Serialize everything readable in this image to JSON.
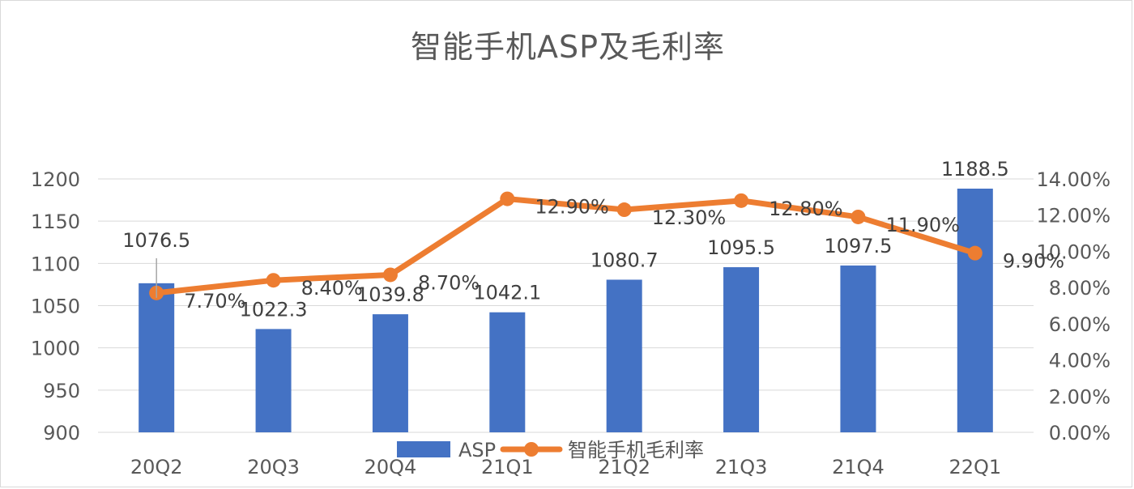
{
  "chart_data": {
    "type": "bar",
    "title": "智能手机ASP及毛利率",
    "categories": [
      "20Q2",
      "20Q3",
      "20Q4",
      "21Q1",
      "21Q2",
      "21Q3",
      "21Q4",
      "22Q1"
    ],
    "series": [
      {
        "name": "ASP",
        "type": "bar",
        "axis": "left",
        "color": "#4472c4",
        "values": [
          1076.5,
          1022.3,
          1039.8,
          1042.1,
          1080.7,
          1095.5,
          1097.5,
          1188.5
        ],
        "labels": [
          "1076.5",
          "1022.3",
          "1039.8",
          "1042.1",
          "1080.7",
          "1095.5",
          "1097.5",
          "1188.5"
        ]
      },
      {
        "name": "智能手机毛利率",
        "type": "line",
        "axis": "right",
        "color": "#ed7d31",
        "values": [
          7.7,
          8.4,
          8.7,
          12.9,
          12.3,
          12.8,
          11.9,
          9.9
        ],
        "labels": [
          "7.70%",
          "8.40%",
          "8.70%",
          "12.90%",
          "12.30%",
          "12.80%",
          "11.90%",
          "9.90%"
        ]
      }
    ],
    "y_left": {
      "ylim": [
        900,
        1200
      ],
      "ticks": [
        "900",
        "950",
        "1000",
        "1050",
        "1100",
        "1150",
        "1200"
      ]
    },
    "y_right": {
      "ylim": [
        0,
        14
      ],
      "unit": "%",
      "ticks": [
        "0.00%",
        "2.00%",
        "4.00%",
        "6.00%",
        "8.00%",
        "10.00%",
        "12.00%",
        "14.00%"
      ]
    },
    "grid": true,
    "legend_position": "bottom"
  }
}
